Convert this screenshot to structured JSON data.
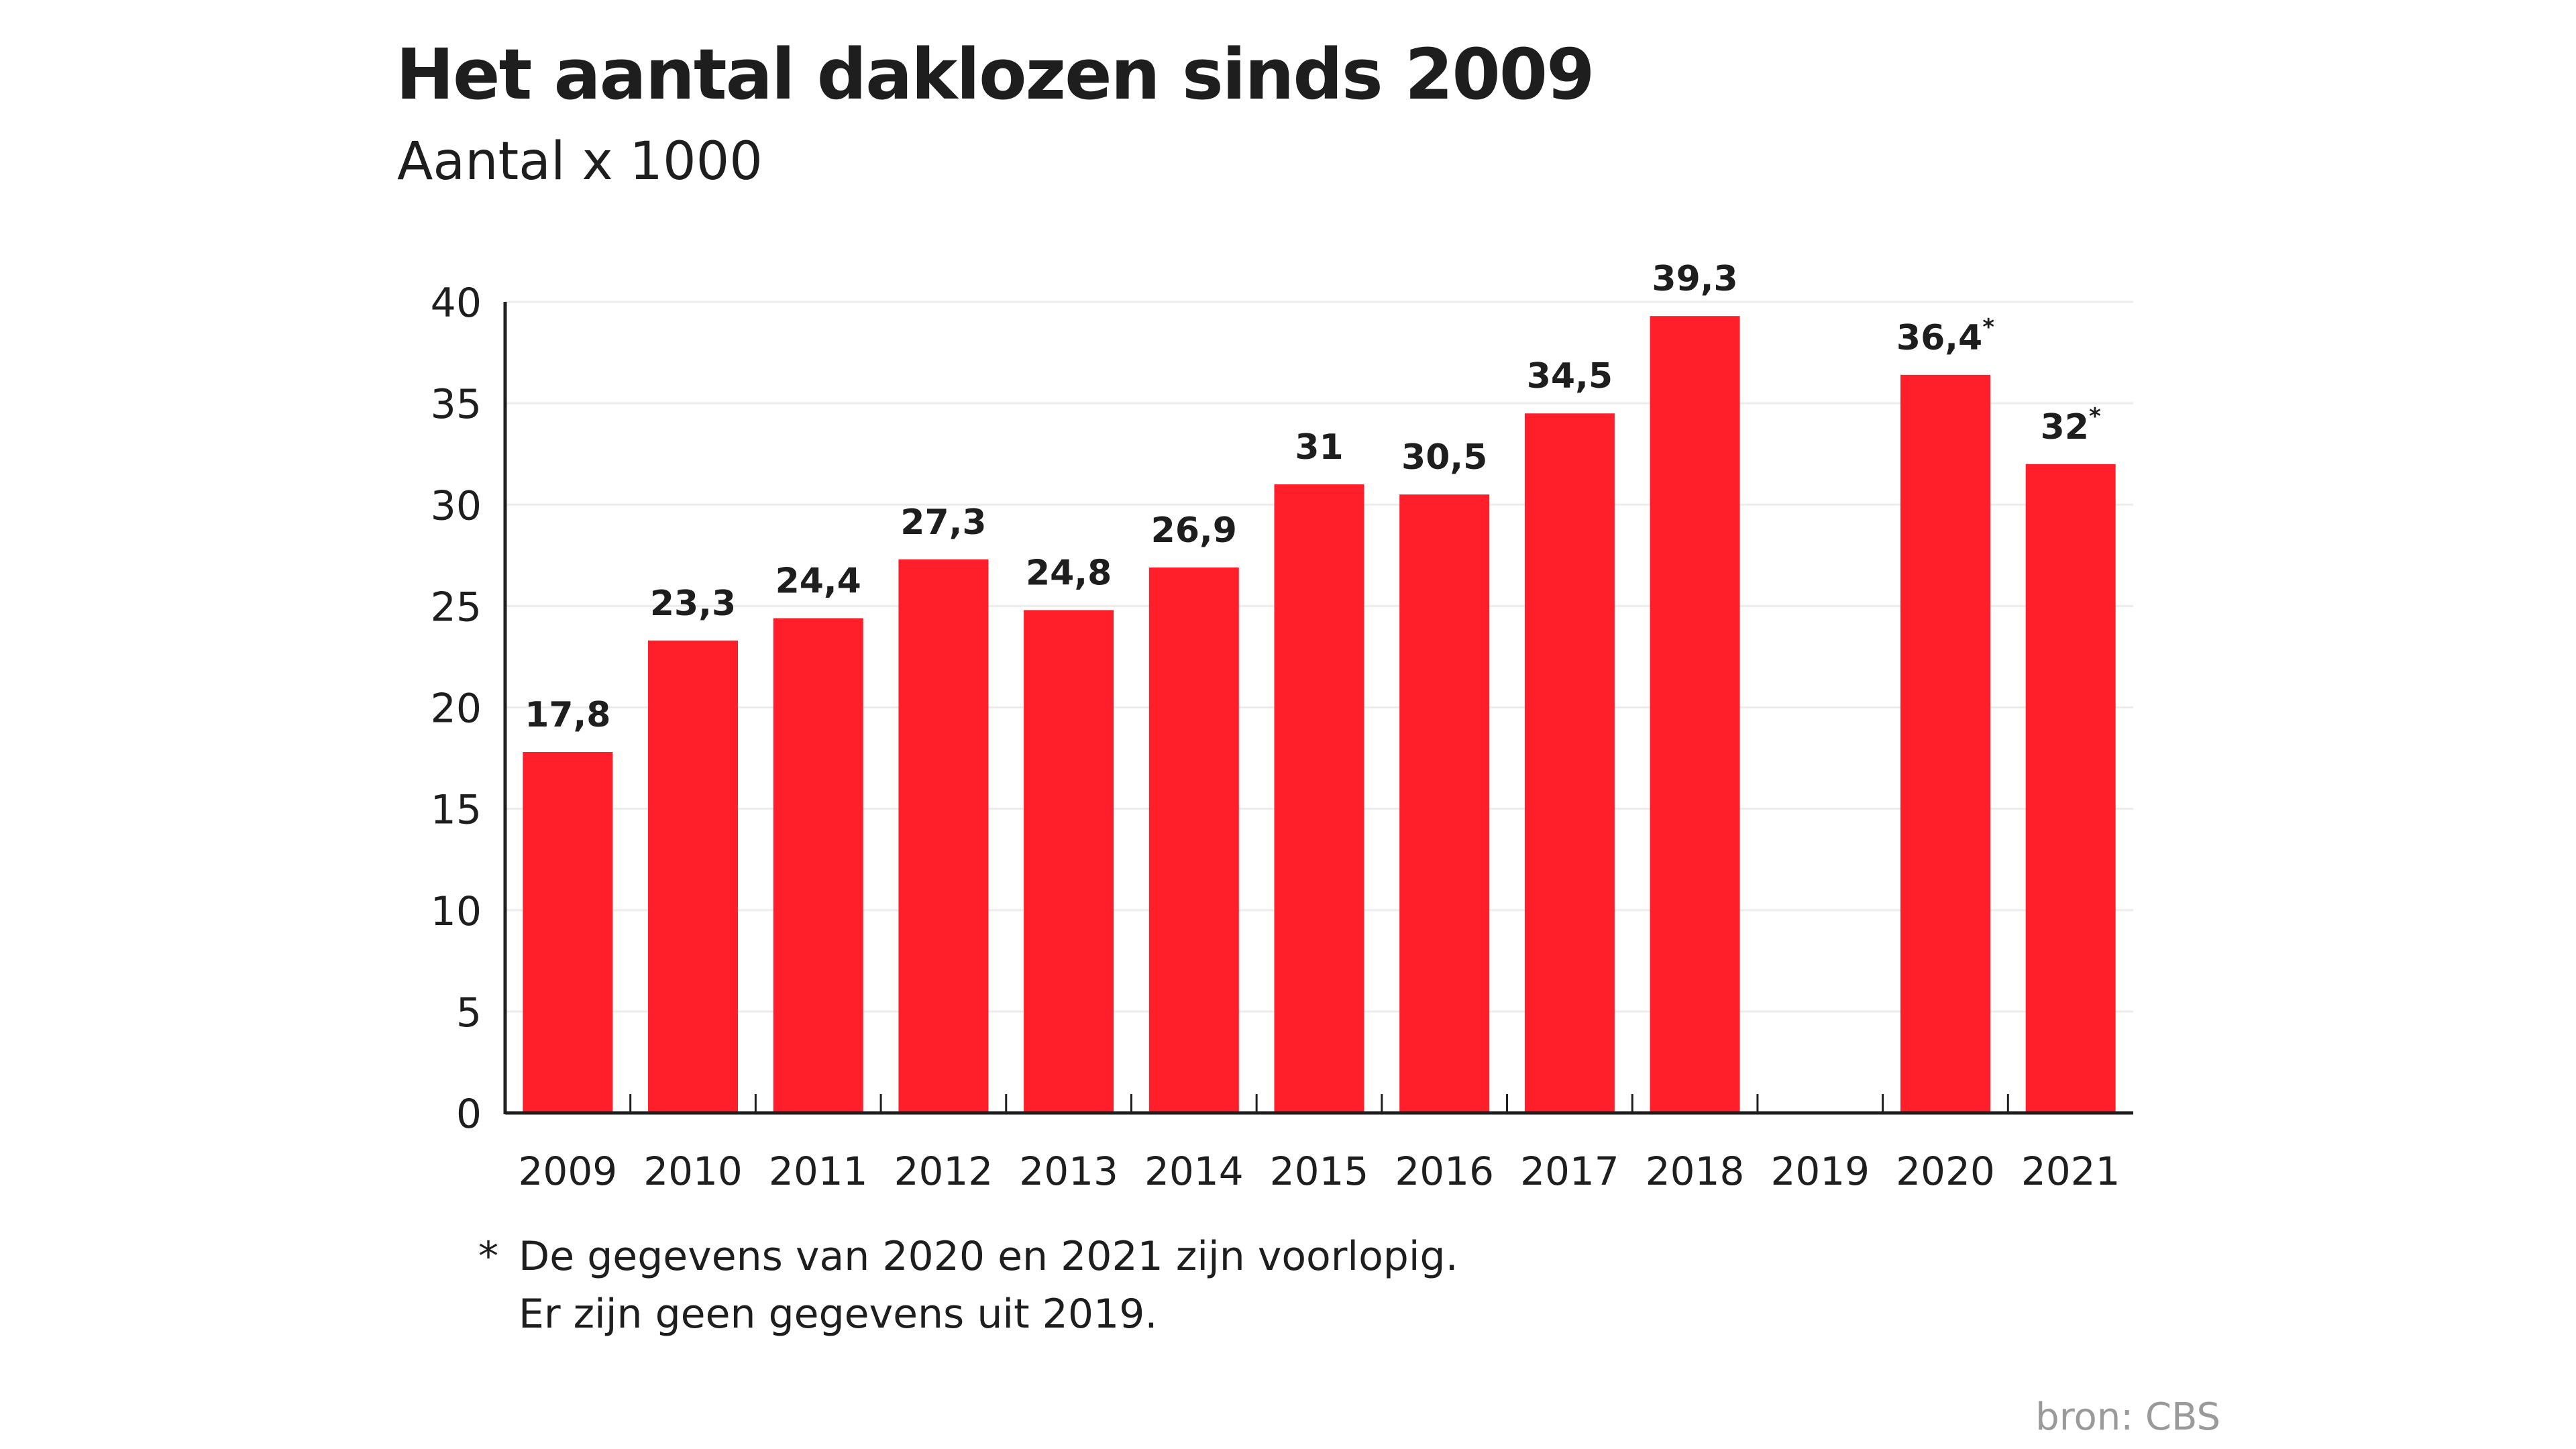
{
  "title": "Het aantal daklozen sinds 2009",
  "subtitle": "Aantal x 1000",
  "footnote": {
    "marker": "*",
    "lines": [
      "De gegevens van 2020 en 2021 zijn voorlopig.",
      "Er zijn geen gegevens uit 2019."
    ]
  },
  "source": "bron: CBS",
  "colors": {
    "bar": "#ff1f2b",
    "text": "#1e1e1e",
    "grid": "#ececec"
  },
  "chart_data": {
    "type": "bar",
    "title": "Het aantal daklozen sinds 2009",
    "subtitle": "Aantal x 1000",
    "xlabel": "",
    "ylabel": "",
    "ylim": [
      0,
      40
    ],
    "yticks": [
      0,
      5,
      10,
      15,
      20,
      25,
      30,
      35,
      40
    ],
    "grid": true,
    "categories": [
      "2009",
      "2010",
      "2011",
      "2012",
      "2013",
      "2014",
      "2015",
      "2016",
      "2017",
      "2018",
      "2019",
      "2020",
      "2021"
    ],
    "values": [
      17.8,
      23.3,
      24.4,
      27.3,
      24.8,
      26.9,
      31,
      30.5,
      34.5,
      39.3,
      null,
      36.4,
      32
    ],
    "data_labels": [
      "17,8",
      "23,3",
      "24,4",
      "27,3",
      "24,8",
      "26,9",
      "31",
      "30,5",
      "34,5",
      "39,3",
      "",
      "36,4",
      "32"
    ],
    "label_markers": [
      "",
      "",
      "",
      "",
      "",
      "",
      "",
      "",
      "",
      "",
      "",
      "*",
      "*"
    ]
  }
}
